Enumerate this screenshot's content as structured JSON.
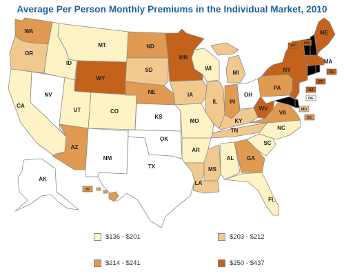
{
  "title": "Average Per Person Monthly Premiums in the Individual Market, 2010",
  "colors": {
    "c1": "#fdf3c4",
    "c2": "#f1c88e",
    "c3": "#e09a52",
    "c4": "#c4621c",
    "none": "#ffffff"
  },
  "legend": [
    {
      "range": "$136 - $201",
      "color": "#fdf3c4"
    },
    {
      "range": "$203 - $212",
      "color": "#f1c88e"
    },
    {
      "range": "$214 - $241",
      "color": "#e09a52"
    },
    {
      "range": "$250 - $437",
      "color": "#c4621c"
    }
  ],
  "states": {
    "WA": {
      "label": "WA",
      "tier": "c3"
    },
    "OR": {
      "label": "OR",
      "tier": "c2"
    },
    "CA": {
      "label": "CA",
      "tier": "c1"
    },
    "NV": {
      "label": "NV",
      "tier": "none"
    },
    "ID": {
      "label": "ID",
      "tier": "c1"
    },
    "MT": {
      "label": "MT",
      "tier": "c1"
    },
    "WY": {
      "label": "WY",
      "tier": "c4"
    },
    "UT": {
      "label": "UT",
      "tier": "c1"
    },
    "CO": {
      "label": "CO",
      "tier": "c1"
    },
    "AZ": {
      "label": "AZ",
      "tier": "c3"
    },
    "NM": {
      "label": "NM",
      "tier": "none"
    },
    "ND": {
      "label": "ND",
      "tier": "c3"
    },
    "SD": {
      "label": "SD",
      "tier": "c2"
    },
    "NE": {
      "label": "NE",
      "tier": "c3"
    },
    "KS": {
      "label": "KS",
      "tier": "none"
    },
    "OK": {
      "label": "OK",
      "tier": "none"
    },
    "TX": {
      "label": "TX",
      "tier": "none"
    },
    "MN": {
      "label": "MN",
      "tier": "c4"
    },
    "IA": {
      "label": "IA",
      "tier": "c2"
    },
    "MO": {
      "label": "MO",
      "tier": "c1"
    },
    "AR": {
      "label": "AR",
      "tier": "c1"
    },
    "LA": {
      "label": "LA",
      "tier": "c2"
    },
    "WI": {
      "label": "WI",
      "tier": "c1"
    },
    "IL": {
      "label": "IL",
      "tier": "c2"
    },
    "MS": {
      "label": "MS",
      "tier": "c2"
    },
    "MI": {
      "label": "MI",
      "tier": "c2"
    },
    "IN": {
      "label": "IN",
      "tier": "c3"
    },
    "OH": {
      "label": "OH",
      "tier": "none"
    },
    "KY": {
      "label": "KY",
      "tier": "c2"
    },
    "TN": {
      "label": "TN",
      "tier": "c2"
    },
    "AL": {
      "label": "AL",
      "tier": "c1"
    },
    "GA": {
      "label": "GA",
      "tier": "c3"
    },
    "FL": {
      "label": "FL",
      "tier": "c1"
    },
    "SC": {
      "label": "SC",
      "tier": "c1"
    },
    "NC": {
      "label": "NC",
      "tier": "c1"
    },
    "VA": {
      "label": "VA",
      "tier": "c3"
    },
    "WV": {
      "label": "WV",
      "tier": "c4"
    },
    "PA": {
      "label": "PA",
      "tier": "c3"
    },
    "NY": {
      "label": "NY",
      "tier": "c4"
    },
    "ME": {
      "label": "ME",
      "tier": "c4"
    },
    "MA": {
      "label": "MA",
      "tier": "c4"
    },
    "NJ": {
      "label": "NJ",
      "tier": "c4"
    },
    "AK": {
      "label": "AK",
      "tier": "none"
    },
    "HI": {
      "label": "HI",
      "tier": "c3"
    }
  },
  "tags": {
    "VT": {
      "label": "VT",
      "tier": "c4"
    },
    "NH": {
      "label": "NH",
      "tier": "c4"
    },
    "RI": {
      "label": "RI",
      "tier": "c4"
    },
    "CT": {
      "label": "CT",
      "tier": "c4"
    },
    "NJ": {
      "label": "NJ",
      "tier": "c4"
    },
    "DE": {
      "label": "DE",
      "tier": "none"
    },
    "MD": {
      "label": "MD",
      "tier": "c2"
    },
    "DC": {
      "label": "DC",
      "tier": "c3"
    },
    "HI": {
      "label": "HI",
      "tier": "c3"
    }
  }
}
